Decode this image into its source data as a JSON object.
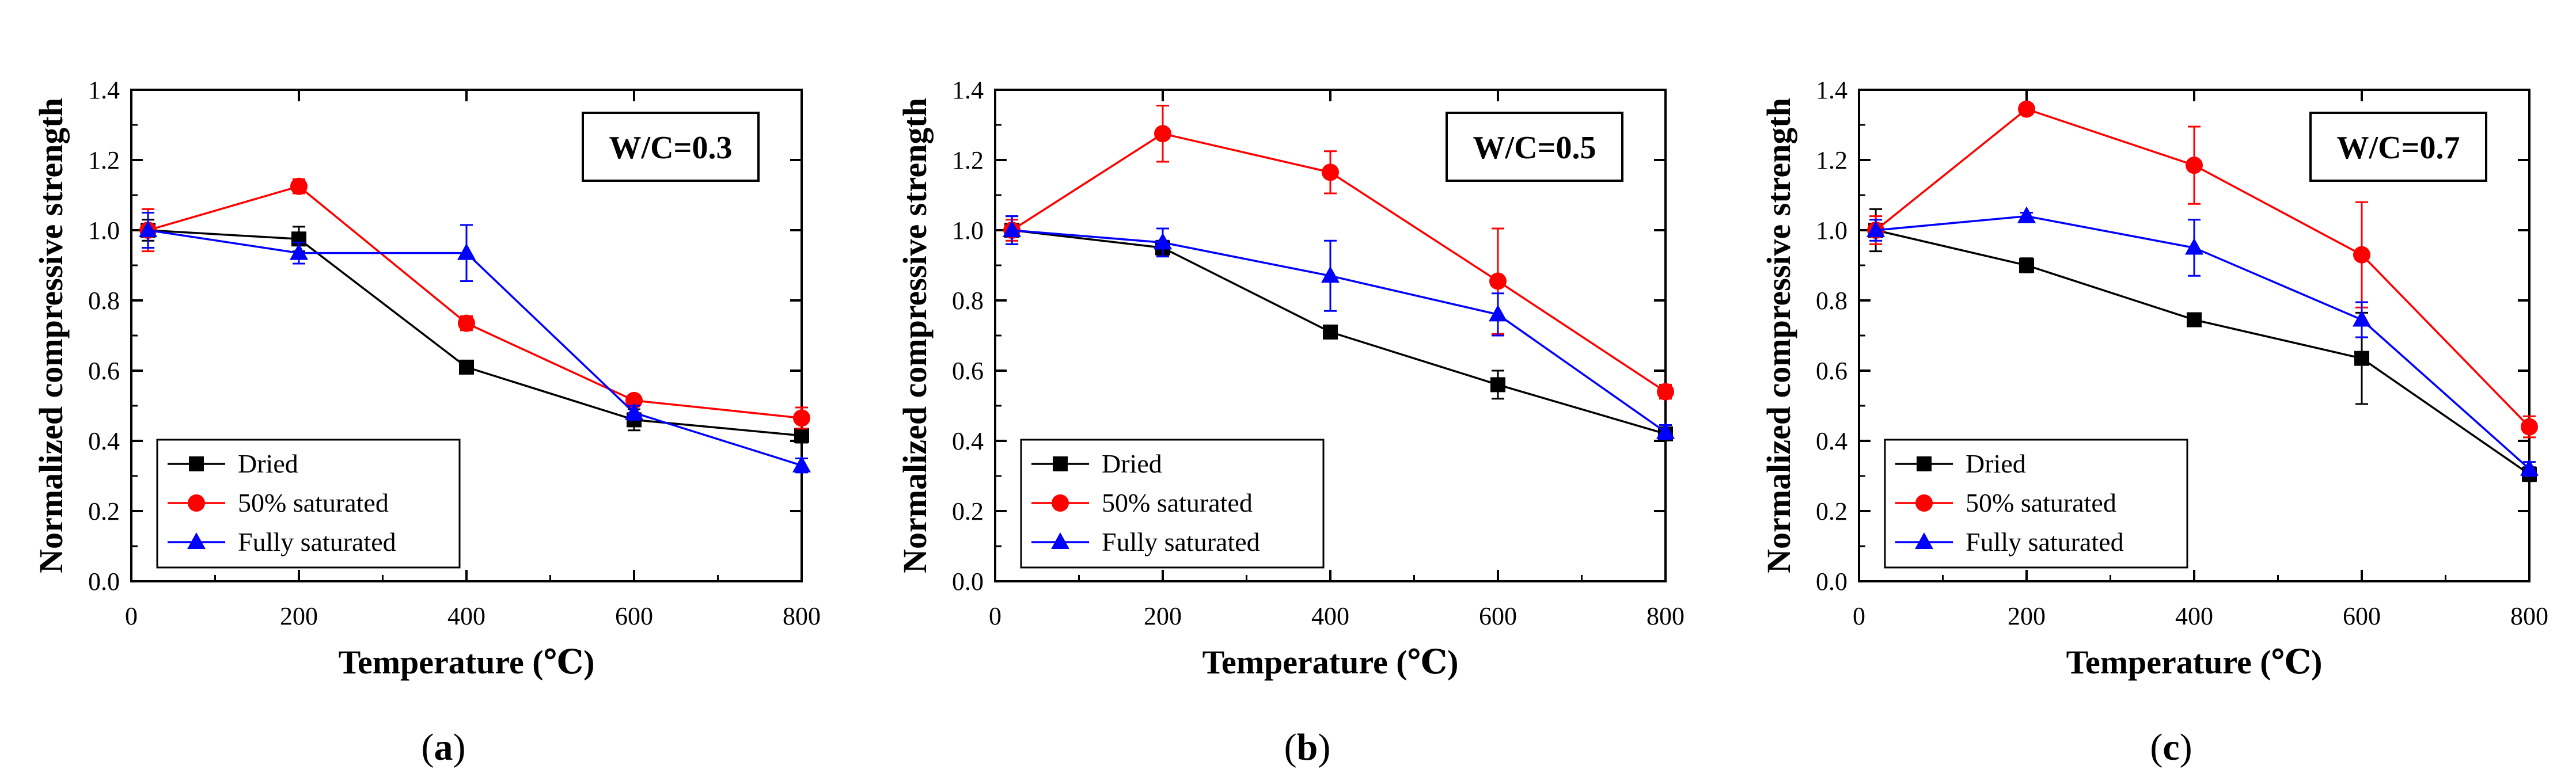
{
  "figure": {
    "panels": [
      {
        "panel_label": "(a)",
        "panel_letter": "a",
        "box_label": "W/C=0.3"
      },
      {
        "panel_label": "(b)",
        "panel_letter": "b",
        "box_label": "W/C=0.5"
      },
      {
        "panel_label": "(c)",
        "panel_letter": "c",
        "box_label": "W/C=0.7"
      }
    ]
  },
  "colors": {
    "dried": "#000000",
    "half": "#ff0000",
    "full": "#0000ff"
  },
  "chart_data": [
    {
      "type": "line",
      "title": "",
      "xlabel": "Temperature (℃)",
      "ylabel": "Normalized compressive strength",
      "xlim": [
        0,
        800
      ],
      "ylim": [
        0,
        1.4
      ],
      "xticks": [
        0,
        200,
        400,
        600,
        800
      ],
      "yticks": [
        "0.0",
        "0.2",
        "0.4",
        "0.6",
        "0.8",
        "1.0",
        "1.2",
        "1.4"
      ],
      "legend_position": "bottom-left",
      "annotation": "W/C=0.3",
      "series": [
        {
          "name": "Dried",
          "color": "#000000",
          "marker": "square",
          "x": [
            20,
            200,
            400,
            600,
            800
          ],
          "y": [
            1.0,
            0.975,
            0.61,
            0.46,
            0.415
          ],
          "err": [
            0.03,
            0.035,
            0.015,
            0.03,
            0.02
          ]
        },
        {
          "name": "50% saturated",
          "color": "#ff0000",
          "marker": "circle",
          "x": [
            20,
            200,
            400,
            600,
            800
          ],
          "y": [
            1.0,
            1.125,
            0.735,
            0.515,
            0.465
          ],
          "err": [
            0.06,
            0.02,
            0.02,
            0.01,
            0.03
          ]
        },
        {
          "name": "Fully saturated",
          "color": "#0000ff",
          "marker": "triangle",
          "x": [
            20,
            200,
            400,
            600,
            800
          ],
          "y": [
            1.0,
            0.935,
            0.935,
            0.48,
            0.33
          ],
          "err": [
            0.05,
            0.03,
            0.08,
            0.02,
            0.02
          ]
        }
      ]
    },
    {
      "type": "line",
      "title": "",
      "xlabel": "Temperature (℃)",
      "ylabel": "Normalized compressive strength",
      "xlim": [
        0,
        800
      ],
      "ylim": [
        0,
        1.4
      ],
      "xticks": [
        0,
        200,
        400,
        600,
        800
      ],
      "yticks": [
        "0.0",
        "0.2",
        "0.4",
        "0.6",
        "0.8",
        "1.0",
        "1.2",
        "1.4"
      ],
      "legend_position": "bottom-left",
      "annotation": "W/C=0.5",
      "series": [
        {
          "name": "Dried",
          "color": "#000000",
          "marker": "square",
          "x": [
            20,
            200,
            400,
            600,
            800
          ],
          "y": [
            1.0,
            0.95,
            0.71,
            0.56,
            0.42
          ],
          "err": [
            0.04,
            0.02,
            0.01,
            0.04,
            0.01
          ]
        },
        {
          "name": "50% saturated",
          "color": "#ff0000",
          "marker": "circle",
          "x": [
            20,
            200,
            400,
            600,
            800
          ],
          "y": [
            1.0,
            1.275,
            1.165,
            0.855,
            0.54
          ],
          "err": [
            0.03,
            0.08,
            0.06,
            0.15,
            0.02
          ]
        },
        {
          "name": "Fully saturated",
          "color": "#0000ff",
          "marker": "triangle",
          "x": [
            20,
            200,
            400,
            600,
            800
          ],
          "y": [
            1.0,
            0.965,
            0.87,
            0.76,
            0.425
          ],
          "err": [
            0.04,
            0.04,
            0.1,
            0.06,
            0.02
          ]
        }
      ]
    },
    {
      "type": "line",
      "title": "",
      "xlabel": "Temperature (℃)",
      "ylabel": "Normalized compressive strength",
      "xlim": [
        0,
        800
      ],
      "ylim": [
        0,
        1.4
      ],
      "xticks": [
        0,
        200,
        400,
        600,
        800
      ],
      "yticks": [
        "0.0",
        "0.2",
        "0.4",
        "0.6",
        "0.8",
        "1.0",
        "1.2",
        "1.4"
      ],
      "legend_position": "bottom-left",
      "annotation": "W/C=0.7",
      "series": [
        {
          "name": "Dried",
          "color": "#000000",
          "marker": "square",
          "x": [
            20,
            200,
            400,
            600,
            800
          ],
          "y": [
            1.0,
            0.9,
            0.745,
            0.635,
            0.305
          ],
          "err": [
            0.06,
            0.02,
            0.01,
            0.13,
            0.02
          ]
        },
        {
          "name": "50% saturated",
          "color": "#ff0000",
          "marker": "circle",
          "x": [
            20,
            200,
            400,
            600,
            800
          ],
          "y": [
            1.0,
            1.345,
            1.185,
            0.93,
            0.44
          ],
          "err": [
            0.04,
            0.015,
            0.11,
            0.15,
            0.03
          ]
        },
        {
          "name": "Fully saturated",
          "color": "#0000ff",
          "marker": "triangle",
          "x": [
            20,
            200,
            400,
            600,
            800
          ],
          "y": [
            1.0,
            1.04,
            0.95,
            0.745,
            0.32
          ],
          "err": [
            0.03,
            0.01,
            0.08,
            0.05,
            0.02
          ]
        }
      ]
    }
  ]
}
